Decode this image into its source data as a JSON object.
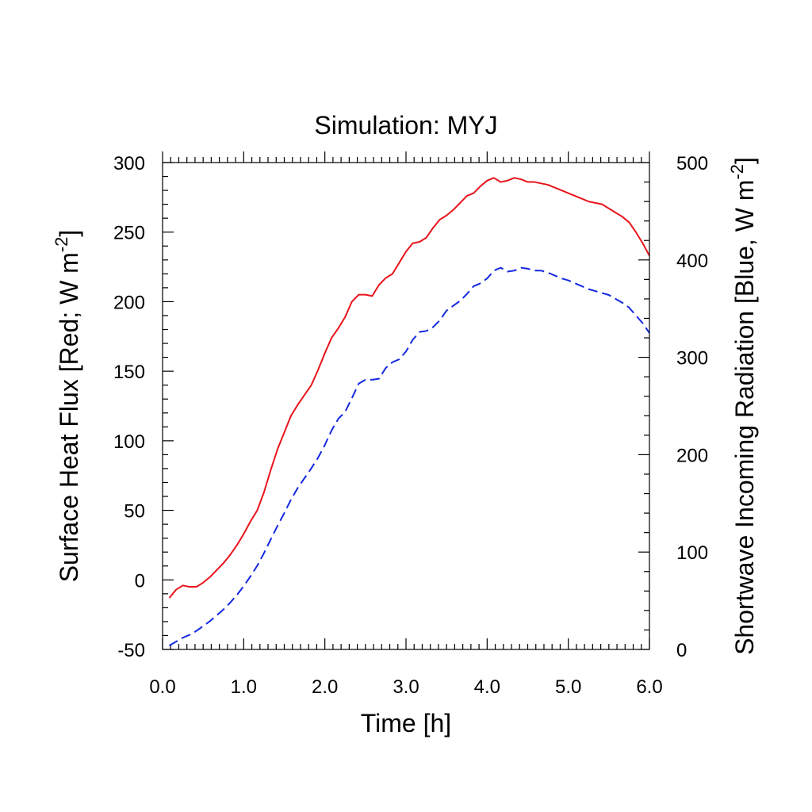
{
  "chart_data": {
    "type": "line",
    "title": "Simulation: MYJ",
    "xlabel": "Time [h]",
    "ylabel_left": {
      "text": "Surface Heat Flux [Red; W m",
      "sup": "-2",
      "close": "]"
    },
    "ylabel_right": {
      "text": "Shortwave Incoming Radiation [Blue, W m",
      "sup": "-2",
      "close": "]"
    },
    "xlim": [
      0,
      6
    ],
    "ylim_left": [
      -50,
      300
    ],
    "ylim_right": [
      0,
      500
    ],
    "x_ticks": [
      "0.0",
      "1.0",
      "2.0",
      "3.0",
      "4.0",
      "5.0",
      "6.0"
    ],
    "y_left_ticks": [
      "-50",
      "0",
      "50",
      "100",
      "150",
      "200",
      "250",
      "300"
    ],
    "y_right_ticks": [
      "0",
      "100",
      "200",
      "300",
      "400",
      "500"
    ],
    "grid": false,
    "series": [
      {
        "color": "#e8141c",
        "dash": "solid",
        "axis": "left",
        "x": [
          0.083,
          0.167,
          0.25,
          0.333,
          0.417,
          0.5,
          0.583,
          0.667,
          0.75,
          0.833,
          0.917,
          1.0,
          1.083,
          1.167,
          1.25,
          1.333,
          1.417,
          1.5,
          1.583,
          1.667,
          1.75,
          1.833,
          1.917,
          2.0,
          2.083,
          2.167,
          2.25,
          2.333,
          2.417,
          2.5,
          2.583,
          2.667,
          2.75,
          2.833,
          2.917,
          3.0,
          3.083,
          3.167,
          3.25,
          3.333,
          3.417,
          3.5,
          3.583,
          3.667,
          3.75,
          3.833,
          3.917,
          4.0,
          4.083,
          4.167,
          4.25,
          4.333,
          4.417,
          4.5,
          4.583,
          4.667,
          4.75,
          4.833,
          4.917,
          5.0,
          5.083,
          5.167,
          5.25,
          5.333,
          5.417,
          5.5,
          5.583,
          5.667,
          5.75,
          5.833,
          5.917,
          6.0
        ],
        "values": [
          -13,
          -7,
          -4,
          -5,
          -5,
          -2,
          2,
          7,
          12,
          18,
          25,
          33,
          42,
          50,
          63,
          79,
          94,
          106,
          118,
          126,
          133,
          140,
          151,
          163,
          174,
          181,
          189,
          200,
          205,
          205,
          204,
          212,
          217,
          220,
          228,
          236,
          242,
          243,
          246,
          253,
          259,
          262,
          266,
          271,
          276,
          278,
          283,
          287,
          289,
          286,
          287,
          289,
          288,
          286,
          286,
          285,
          284,
          282,
          280,
          278,
          276,
          274,
          272,
          271,
          270,
          267,
          264,
          261,
          257,
          250,
          242,
          233
        ]
      },
      {
        "color": "#1428e0",
        "dash": "dashed",
        "axis": "right",
        "x": [
          0.083,
          0.167,
          0.25,
          0.333,
          0.417,
          0.5,
          0.583,
          0.667,
          0.75,
          0.833,
          0.917,
          1.0,
          1.083,
          1.167,
          1.25,
          1.333,
          1.417,
          1.5,
          1.583,
          1.667,
          1.75,
          1.833,
          1.917,
          2.0,
          2.083,
          2.167,
          2.25,
          2.333,
          2.417,
          2.5,
          2.583,
          2.667,
          2.75,
          2.833,
          2.917,
          3.0,
          3.083,
          3.167,
          3.25,
          3.333,
          3.417,
          3.5,
          3.583,
          3.667,
          3.75,
          3.833,
          3.917,
          4.0,
          4.083,
          4.167,
          4.25,
          4.333,
          4.417,
          4.5,
          4.583,
          4.667,
          4.75,
          4.833,
          4.917,
          5.0,
          5.083,
          5.167,
          5.25,
          5.333,
          5.417,
          5.5,
          5.583,
          5.667,
          5.75,
          5.833,
          5.917,
          6.0
        ],
        "values": [
          4,
          8,
          12,
          15,
          19,
          24,
          29,
          35,
          41,
          48,
          56,
          65,
          75,
          86,
          99,
          113,
          127,
          140,
          154,
          166,
          176,
          186,
          197,
          210,
          225,
          237,
          244,
          258,
          273,
          277,
          277,
          278,
          289,
          295,
          298,
          306,
          318,
          326,
          327,
          331,
          338,
          348,
          353,
          358,
          365,
          373,
          376,
          381,
          389,
          392,
          388,
          389,
          392,
          391,
          389,
          389,
          387,
          384,
          381,
          379,
          376,
          373,
          370,
          368,
          366,
          364,
          360,
          356,
          351,
          343,
          335,
          325
        ]
      }
    ]
  }
}
